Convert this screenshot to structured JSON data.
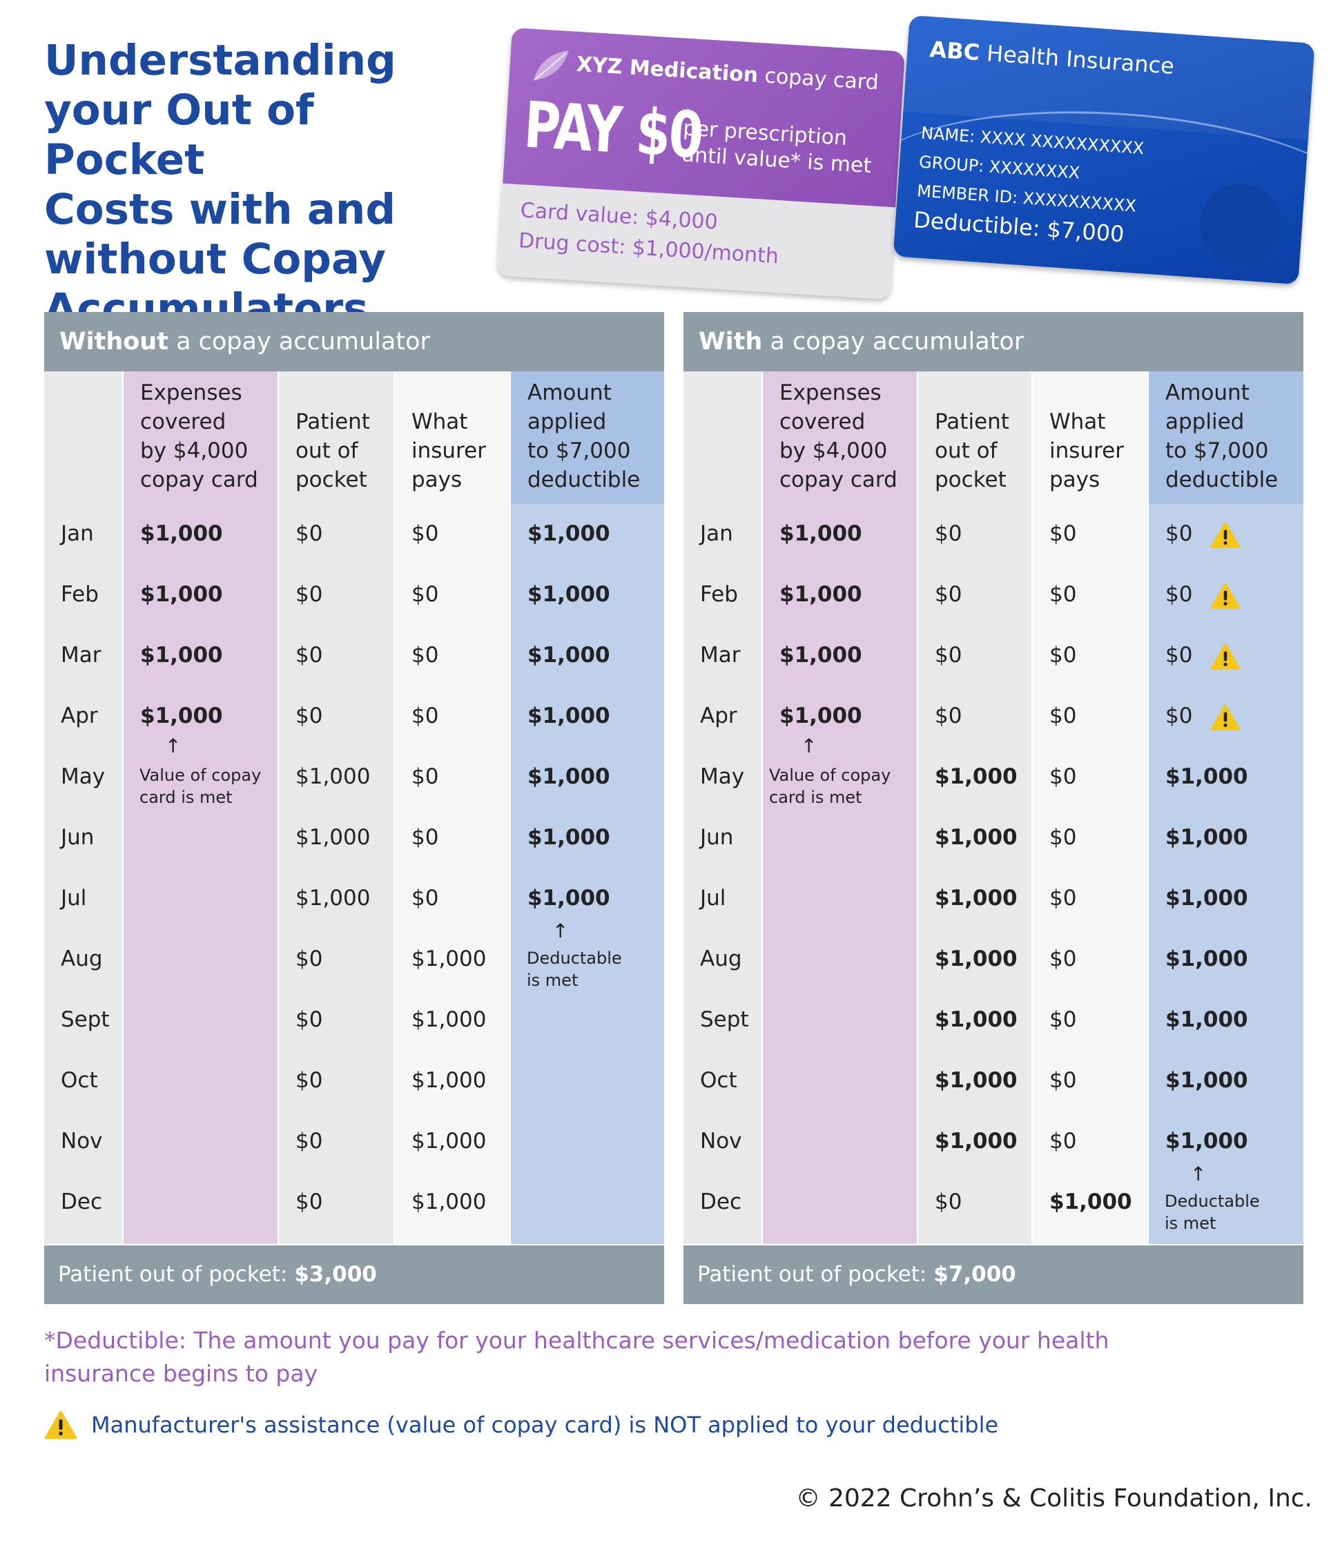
{
  "title": [
    "Understanding",
    "your Out of Pocket",
    "Costs with and",
    "without Copay",
    "Accumulators"
  ],
  "copay_card": {
    "brand": "XYZ Medication",
    "suffix": "copay card",
    "headline": "PAY $0",
    "desc_line1": "per prescription",
    "desc_line2": "until value* is met",
    "card_value": "Card value: $4,000",
    "drug_cost": "Drug cost: $1,000/month"
  },
  "insurance_card": {
    "brand": "ABC",
    "suffix": "Health Insurance",
    "name": "NAME: XXXX XXXXXXXXXX",
    "group": "GROUP: XXXXXXXX",
    "member_id": "MEMBER ID: XXXXXXXXXX",
    "deductible": "Deductible: $7,000"
  },
  "headers": {
    "expenses": "Expenses\ncovered\nby $4,000\ncopay card",
    "patient": "Patient\nout of\npocket",
    "insurer": "What\ninsurer\npays",
    "applied": "Amount\napplied\nto $7,000\ndeductible"
  },
  "without": {
    "title_bold": "Without",
    "title_rest": " a copay accumulator",
    "footer_label": "Patient out of pocket: ",
    "footer_value": "$3,000",
    "note_copay": "Value of copay\ncard is met",
    "note_deductible": "Deductable\nis met",
    "rows": [
      {
        "month": "Jan",
        "expenses": "$1,000",
        "patient": "$0",
        "insurer": "$0",
        "applied": "$1,000"
      },
      {
        "month": "Feb",
        "expenses": "$1,000",
        "patient": "$0",
        "insurer": "$0",
        "applied": "$1,000"
      },
      {
        "month": "Mar",
        "expenses": "$1,000",
        "patient": "$0",
        "insurer": "$0",
        "applied": "$1,000"
      },
      {
        "month": "Apr",
        "expenses": "$1,000",
        "patient": "$0",
        "insurer": "$0",
        "applied": "$1,000"
      },
      {
        "month": "May",
        "expenses": "",
        "patient": "$1,000",
        "insurer": "$0",
        "applied": "$1,000"
      },
      {
        "month": "Jun",
        "expenses": "",
        "patient": "$1,000",
        "insurer": "$0",
        "applied": "$1,000"
      },
      {
        "month": "Jul",
        "expenses": "",
        "patient": "$1,000",
        "insurer": "$0",
        "applied": "$1,000"
      },
      {
        "month": "Aug",
        "expenses": "",
        "patient": "$0",
        "insurer": "$1,000",
        "applied": ""
      },
      {
        "month": "Sept",
        "expenses": "",
        "patient": "$0",
        "insurer": "$1,000",
        "applied": ""
      },
      {
        "month": "Oct",
        "expenses": "",
        "patient": "$0",
        "insurer": "$1,000",
        "applied": ""
      },
      {
        "month": "Nov",
        "expenses": "",
        "patient": "$0",
        "insurer": "$1,000",
        "applied": ""
      },
      {
        "month": "Dec",
        "expenses": "",
        "patient": "$0",
        "insurer": "$1,000",
        "applied": ""
      }
    ]
  },
  "with": {
    "title_bold": "With",
    "title_rest": " a copay accumulator",
    "footer_label": "Patient out of pocket: ",
    "footer_value": "$7,000",
    "note_copay": "Value of copay\ncard is met",
    "note_deductible": "Deductable\nis met",
    "rows": [
      {
        "month": "Jan",
        "expenses": "$1,000",
        "patient": "$0",
        "insurer": "$0",
        "applied": "$0"
      },
      {
        "month": "Feb",
        "expenses": "$1,000",
        "patient": "$0",
        "insurer": "$0",
        "applied": "$0"
      },
      {
        "month": "Mar",
        "expenses": "$1,000",
        "patient": "$0",
        "insurer": "$0",
        "applied": "$0"
      },
      {
        "month": "Apr",
        "expenses": "$1,000",
        "patient": "$0",
        "insurer": "$0",
        "applied": "$0"
      },
      {
        "month": "May",
        "expenses": "",
        "patient": "$1,000",
        "insurer": "$0",
        "applied": "$1,000"
      },
      {
        "month": "Jun",
        "expenses": "",
        "patient": "$1,000",
        "insurer": "$0",
        "applied": "$1,000"
      },
      {
        "month": "Jul",
        "expenses": "",
        "patient": "$1,000",
        "insurer": "$0",
        "applied": "$1,000"
      },
      {
        "month": "Aug",
        "expenses": "",
        "patient": "$1,000",
        "insurer": "$0",
        "applied": "$1,000"
      },
      {
        "month": "Sept",
        "expenses": "",
        "patient": "$1,000",
        "insurer": "$0",
        "applied": "$1,000"
      },
      {
        "month": "Oct",
        "expenses": "",
        "patient": "$1,000",
        "insurer": "$0",
        "applied": "$1,000"
      },
      {
        "month": "Nov",
        "expenses": "",
        "patient": "$1,000",
        "insurer": "$0",
        "applied": "$1,000"
      },
      {
        "month": "Dec",
        "expenses": "",
        "patient": "$0",
        "insurer": "$1,000",
        "applied": ""
      }
    ]
  },
  "footnote": "*Deductible: The amount you pay for your healthcare services/medication before your health insurance begins to pay",
  "warning_note": "Manufacturer's assistance (value of copay card) is NOT applied to your deductible",
  "copyright": "© 2022 Crohn’s & Colitis Foundation, Inc.",
  "colors": {
    "title_blue": "#1b4aa0",
    "header_gray": "#8f9ea6",
    "expenses_purple": "#e0cbe2",
    "patient_gray": "#e8e9eb",
    "insurer_white": "#f6f6f6",
    "applied_blue": "#bfd0ea",
    "footnote_purple": "#9b5cc4",
    "warning_yellow": "#f5c518"
  }
}
